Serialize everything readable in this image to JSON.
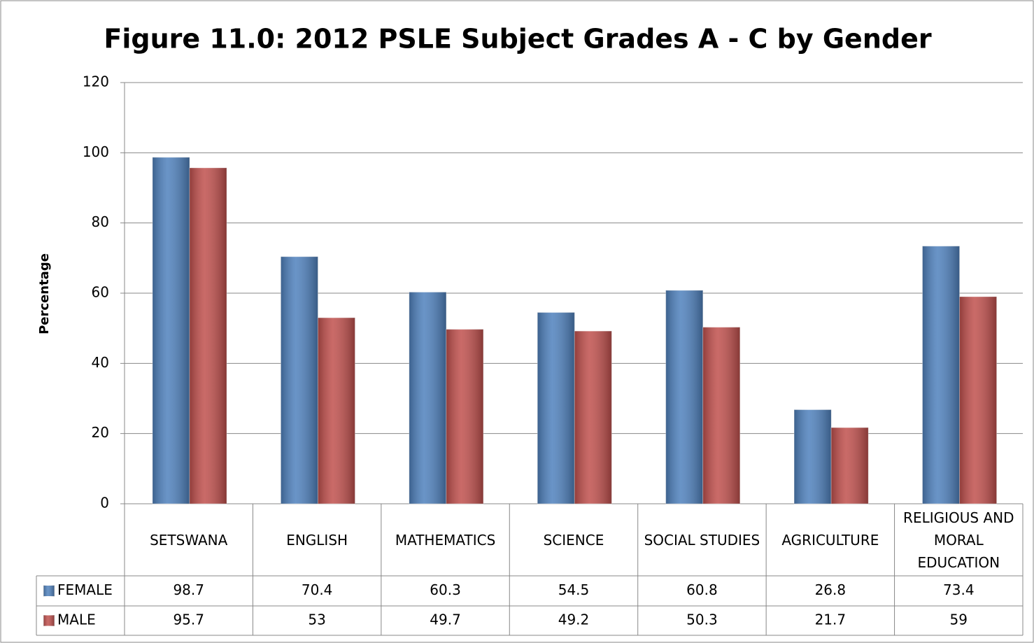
{
  "chart_data": {
    "type": "bar",
    "title": "Figure 11.0: 2012 PSLE Subject Grades A - C by Gender",
    "ylabel": "Percentage",
    "categories": [
      "SETSWANA",
      "ENGLISH",
      "MATHEMATICS",
      "SCIENCE",
      "SOCIAL STUDIES",
      "AGRICULTURE",
      "RELIGIOUS AND MORAL EDUCATION"
    ],
    "series": [
      {
        "name": "FEMALE",
        "color": "#4f81bd",
        "values": [
          98.7,
          70.4,
          60.3,
          54.5,
          60.8,
          26.8,
          73.4
        ]
      },
      {
        "name": "MALE",
        "color": "#c0504d",
        "values": [
          95.7,
          53,
          49.7,
          49.2,
          50.3,
          21.7,
          59
        ]
      }
    ],
    "ylim": [
      0,
      120
    ],
    "yticks": [
      0,
      20,
      40,
      60,
      80,
      100,
      120
    ],
    "grid": true
  }
}
